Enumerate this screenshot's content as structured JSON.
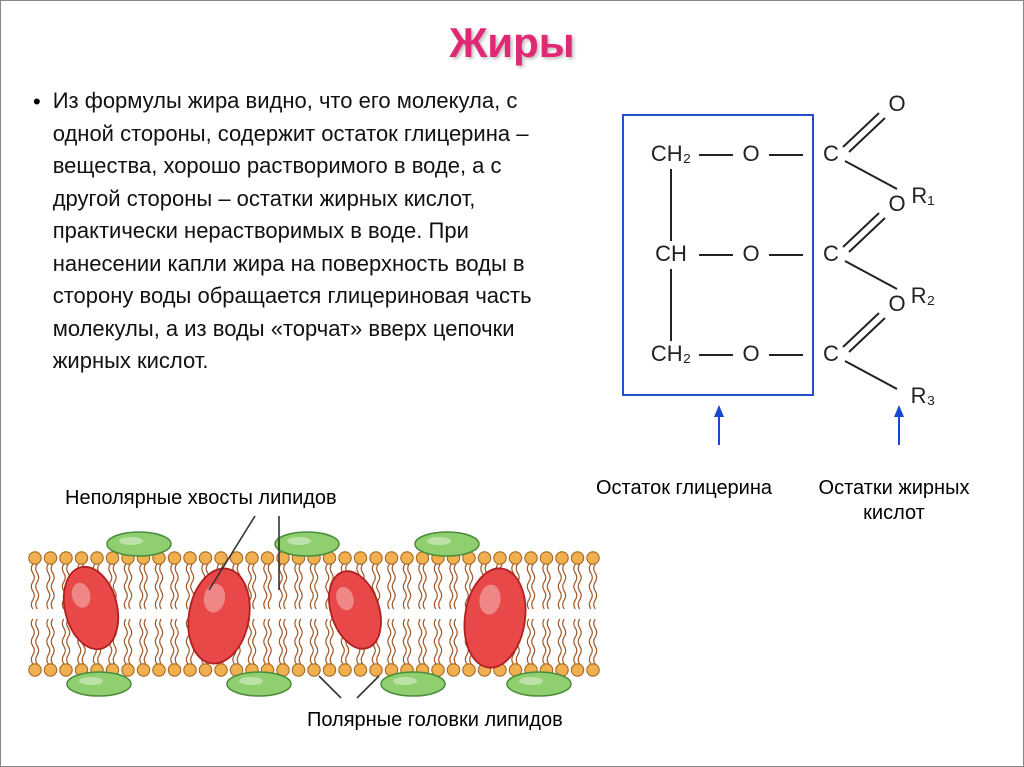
{
  "title": {
    "text": "Жиры",
    "color": "#e02874"
  },
  "paragraph": "Из формулы жира видно, что его молекула, с одной стороны, содержит остаток глицерина – вещества, хорошо растворимого в воде, а с другой стороны – остатки жирных кислот, практически нерастворимых в воде. При нанесении капли жира на поверхность воды в сторону воды обращается глицериновая часть молекулы, а из воды «торчат» вверх цепочки жирных кислот.",
  "formula": {
    "text_color": "#222222",
    "font_size": 22,
    "box_stroke": "#2050d0",
    "arrow_color": "#1848d0",
    "glycerol": [
      "CH₂",
      "CH",
      "CH₂"
    ],
    "fatty": [
      "R₁",
      "R₂",
      "R₃"
    ],
    "callouts": {
      "left": "Остаток глицерина",
      "right": "Остатки жирных кислот"
    }
  },
  "membrane": {
    "label_top": "Неполярные хвосты липидов",
    "label_bot": "Полярные головки липидов",
    "head_fill": "#f0b050",
    "head_stroke": "#a86820",
    "tail_color": "#a05828",
    "protein_fill": "#e84848",
    "protein_stroke": "#b02020",
    "surface_fill": "#8fcf6f",
    "surface_stroke": "#4a8c3a",
    "leader_color": "#333333"
  }
}
